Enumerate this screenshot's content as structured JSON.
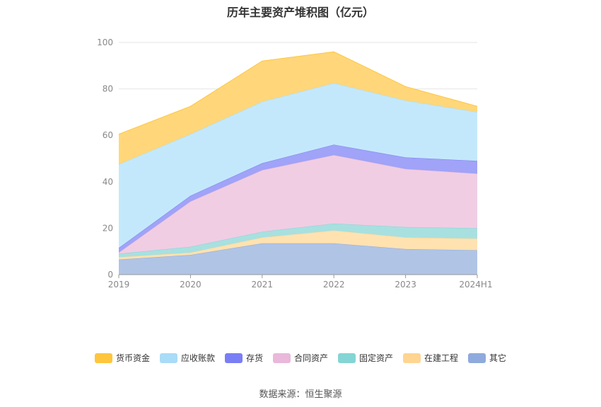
{
  "title": "历年主要资产堆积图（亿元）",
  "source": "数据来源：恒生聚源",
  "chart_data": {
    "type": "area",
    "stacked": true,
    "x": [
      "2019",
      "2020",
      "2021",
      "2022",
      "2023",
      "2024H1"
    ],
    "ylim": [
      0,
      100
    ],
    "yticks": [
      0,
      20,
      40,
      60,
      80,
      100
    ],
    "grid": true,
    "legend_position": "bottom",
    "series": [
      {
        "name": "其它",
        "values": [
          6.5,
          8.5,
          13.5,
          13.5,
          11.0,
          10.5
        ],
        "color": "#8faadc",
        "fill": "#b0c4e6"
      },
      {
        "name": "在建工程",
        "values": [
          1.0,
          1.0,
          2.5,
          5.5,
          5.0,
          5.0
        ],
        "color": "#ffd591",
        "fill": "#ffe2b0"
      },
      {
        "name": "固定资产",
        "values": [
          1.5,
          2.5,
          2.5,
          3.0,
          4.5,
          4.5
        ],
        "color": "#85d5d5",
        "fill": "#a8e0e0"
      },
      {
        "name": "合同资产",
        "values": [
          0.5,
          19.5,
          26.5,
          29.5,
          25.0,
          23.5
        ],
        "color": "#e9b8da",
        "fill": "#f0cde3"
      },
      {
        "name": "存货",
        "values": [
          2.0,
          2.5,
          3.0,
          4.5,
          5.0,
          5.5
        ],
        "color": "#7a7ef5",
        "fill": "#a0a3f7"
      },
      {
        "name": "应收账款",
        "values": [
          36.0,
          26.5,
          26.5,
          26.5,
          24.5,
          21.0
        ],
        "color": "#a8dcf7",
        "fill": "#c4e8fb"
      },
      {
        "name": "货币资金",
        "values": [
          13.0,
          12.0,
          17.5,
          13.5,
          6.0,
          2.5
        ],
        "color": "#ffc53d",
        "fill": "#ffd77a"
      }
    ]
  }
}
